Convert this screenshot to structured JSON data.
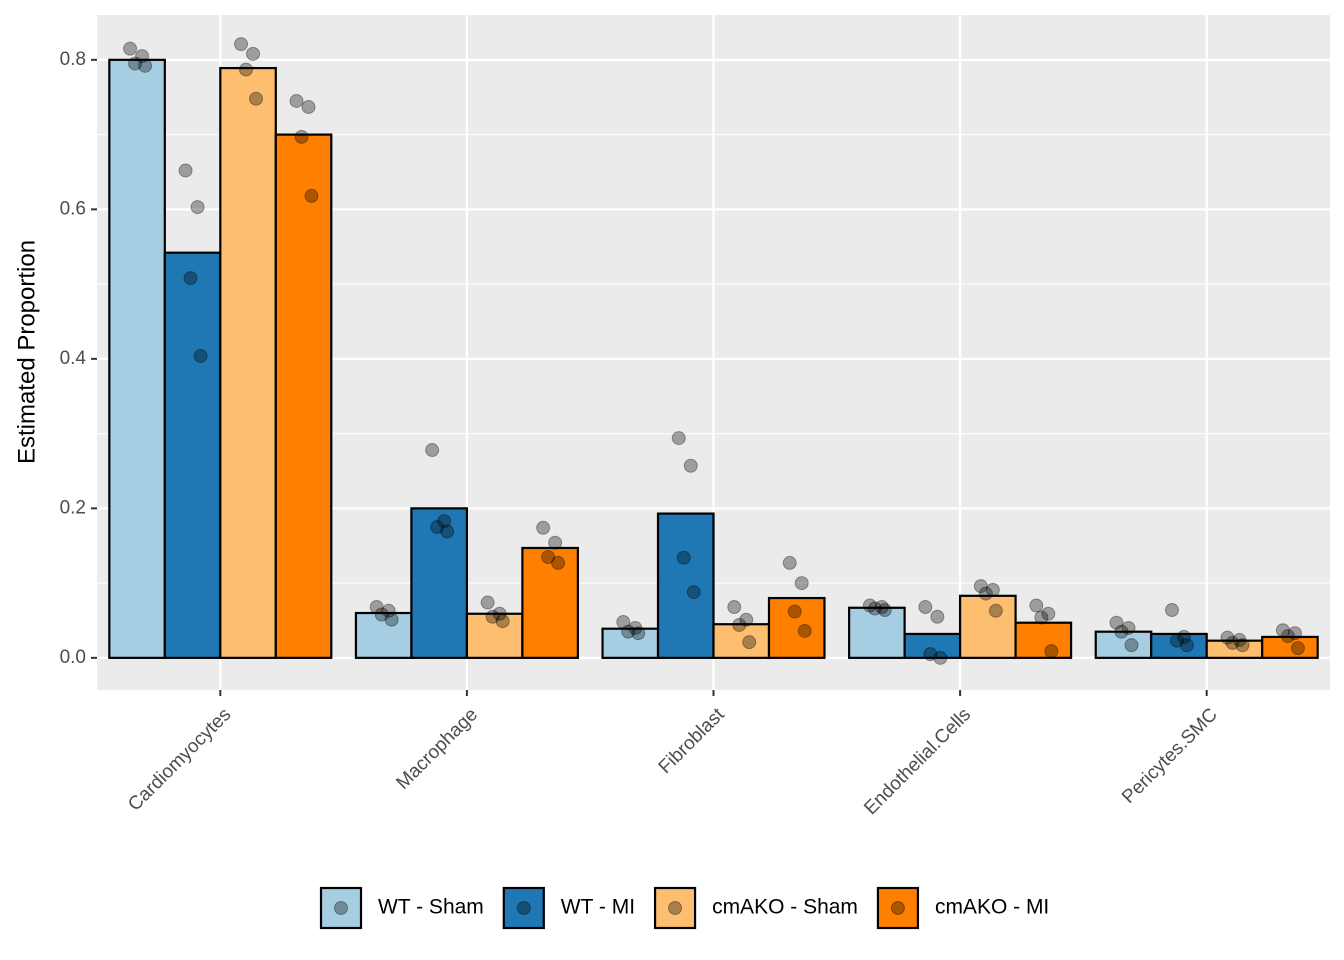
{
  "chart_data": {
    "type": "bar",
    "y_label": "Estimated Proportion",
    "categories": [
      "Cardiomyocytes",
      "Macrophage",
      "Fibroblast",
      "Endothelial.Cells",
      "Pericytes.SMC"
    ],
    "series": [
      {
        "name": "WT - Sham",
        "color": "#a6cee3",
        "values": [
          0.8,
          0.06,
          0.039,
          0.067,
          0.035
        ],
        "points": [
          [
            0.815,
            0.805,
            0.795,
            0.792
          ],
          [
            0.068,
            0.063,
            0.058,
            0.051
          ],
          [
            0.048,
            0.04,
            0.035,
            0.033
          ],
          [
            0.07,
            0.068,
            0.066,
            0.064
          ],
          [
            0.047,
            0.04,
            0.035,
            0.017
          ]
        ]
      },
      {
        "name": "WT - MI",
        "color": "#1f78b4",
        "values": [
          0.542,
          0.2,
          0.193,
          0.032,
          0.032
        ],
        "points": [
          [
            0.652,
            0.603,
            0.508,
            0.404
          ],
          [
            0.278,
            0.183,
            0.175,
            0.169
          ],
          [
            0.294,
            0.257,
            0.134,
            0.088
          ],
          [
            0.068,
            0.055,
            0.005,
            0.0
          ],
          [
            0.064,
            0.028,
            0.023,
            0.017
          ]
        ]
      },
      {
        "name": "cmAKO - Sham",
        "color": "#fdbf6f",
        "values": [
          0.789,
          0.059,
          0.045,
          0.083,
          0.023
        ],
        "points": [
          [
            0.821,
            0.808,
            0.787,
            0.748
          ],
          [
            0.074,
            0.059,
            0.055,
            0.049
          ],
          [
            0.068,
            0.051,
            0.044,
            0.021
          ],
          [
            0.096,
            0.091,
            0.086,
            0.063
          ],
          [
            0.027,
            0.024,
            0.02,
            0.017
          ]
        ]
      },
      {
        "name": "cmAKO - MI",
        "color": "#ff7f00",
        "values": [
          0.7,
          0.147,
          0.08,
          0.047,
          0.028
        ],
        "points": [
          [
            0.745,
            0.737,
            0.697,
            0.618
          ],
          [
            0.174,
            0.154,
            0.135,
            0.127
          ],
          [
            0.127,
            0.1,
            0.062,
            0.036
          ],
          [
            0.07,
            0.059,
            0.054,
            0.009
          ],
          [
            0.037,
            0.033,
            0.029,
            0.013
          ]
        ]
      }
    ],
    "ylim": [
      -0.043,
      0.86
    ],
    "yticks": [
      {
        "value": 0,
        "label": "0.0"
      },
      0.2,
      0.4,
      0.6,
      0.8
    ],
    "grid": true,
    "legend": "bottom"
  }
}
